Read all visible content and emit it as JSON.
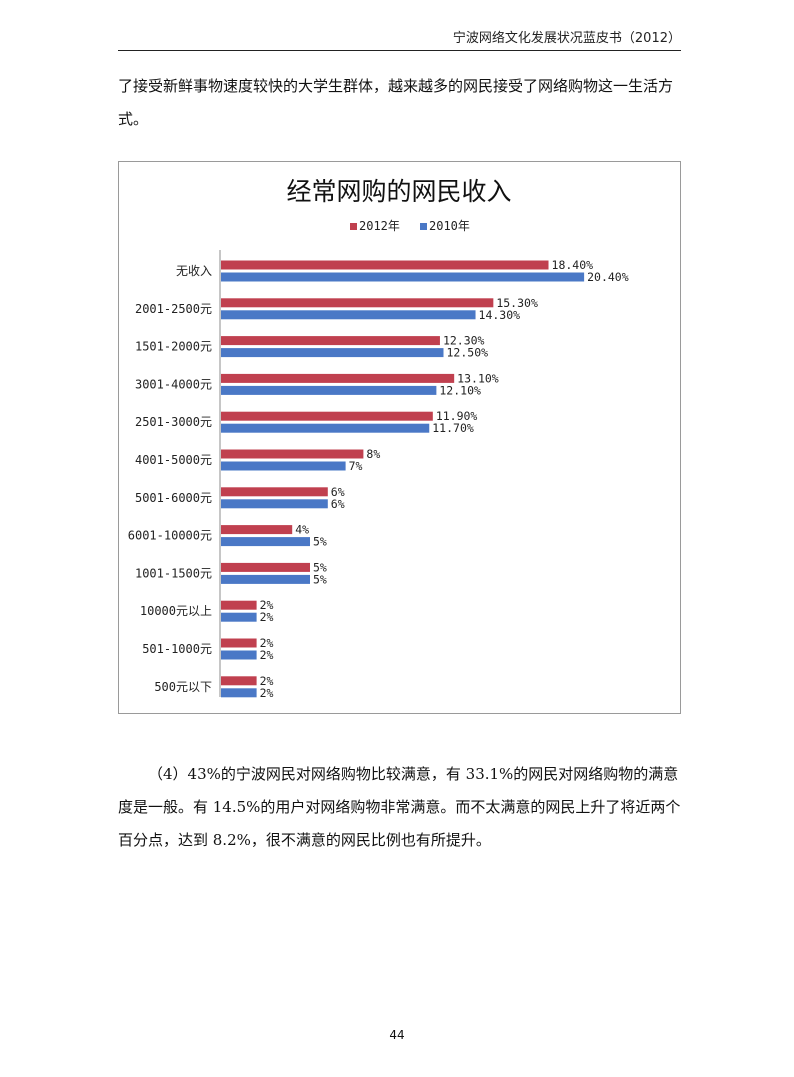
{
  "header": {
    "title": "宁波网络文化发展状况蓝皮书（2012）"
  },
  "paragraphs": {
    "intro": "了接受新鲜事物速度较快的大学生群体，越来越多的网民接受了网络购物这一生活方式。",
    "satisfaction": "（4）43%的宁波网民对网络购物比较满意，有 33.1%的网民对网络购物的满意度是一般。有 14.5%的用户对网络购物非常满意。而不太满意的网民上升了将近两个百分点，达到 8.2%，很不满意的网民比例也有所提升。"
  },
  "page_number": "44",
  "chart_data": {
    "type": "bar",
    "orientation": "horizontal",
    "title": "经常网购的网民收入",
    "legend_position": "top",
    "colors": {
      "2012年": "#c0404f",
      "2010年": "#4a78c6"
    },
    "categories": [
      "无收入",
      "2001-2500元",
      "1501-2000元",
      "3001-4000元",
      "2501-3000元",
      "4001-5000元",
      "5001-6000元",
      "6001-10000元",
      "1001-1500元",
      "10000元以上",
      "501-1000元",
      "500元以下"
    ],
    "series": [
      {
        "name": "2012年",
        "color": "#c0404f",
        "values": [
          18.4,
          15.3,
          12.3,
          13.1,
          11.9,
          8,
          6,
          4,
          5,
          2,
          2,
          2
        ],
        "labels": [
          "18.40%",
          "15.30%",
          "12.30%",
          "13.10%",
          "11.90%",
          "8%",
          "6%",
          "4%",
          "5%",
          "2%",
          "2%",
          "2%"
        ]
      },
      {
        "name": "2010年",
        "color": "#4a78c6",
        "values": [
          20.4,
          14.3,
          12.5,
          12.1,
          11.7,
          7,
          6,
          5,
          5,
          2,
          2,
          2
        ],
        "labels": [
          "20.40%",
          "14.30%",
          "12.50%",
          "12.10%",
          "11.70%",
          "7%",
          "6%",
          "5%",
          "5%",
          "2%",
          "2%",
          "2%"
        ]
      }
    ],
    "xlim": [
      0,
      25
    ],
    "grid": false
  }
}
